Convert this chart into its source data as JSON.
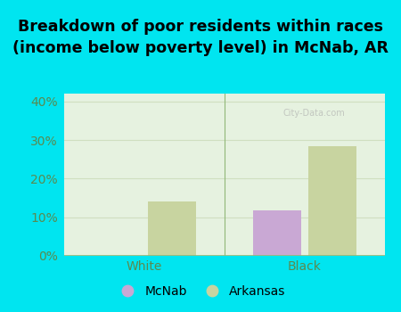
{
  "title": "Breakdown of poor residents within races\n(income below poverty level) in McNab, AR",
  "categories": [
    "White",
    "Black"
  ],
  "mcnab_values": [
    0.0,
    11.8
  ],
  "arkansas_values": [
    14.0,
    28.5
  ],
  "mcnab_color": "#c9a8d4",
  "arkansas_color": "#c8d4a0",
  "background_outer": "#00e5f0",
  "background_plot": "#e6f2e0",
  "ylim": [
    0,
    0.42
  ],
  "yticks": [
    0.0,
    0.1,
    0.2,
    0.3,
    0.4
  ],
  "ytick_labels": [
    "0%",
    "10%",
    "20%",
    "30%",
    "40%"
  ],
  "bar_width": 0.3,
  "title_fontsize": 12.5,
  "tick_fontsize": 10,
  "legend_fontsize": 10,
  "grid_color": "#d0dfc0",
  "axis_color": "#90b878",
  "tick_color": "#5a8a50",
  "watermark": "City-Data.com"
}
